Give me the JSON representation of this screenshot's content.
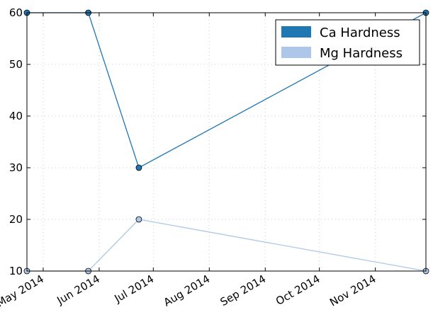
{
  "chart_data": {
    "type": "line",
    "title": "",
    "xlabel": "",
    "ylabel": "",
    "x_axis": "date",
    "xlim": [
      "2014-04-22",
      "2014-11-29"
    ],
    "ylim": [
      10,
      60
    ],
    "grid": true,
    "legend_position": "top-right",
    "x_tick_values": [
      "2014-05-01",
      "2014-06-01",
      "2014-07-01",
      "2014-08-01",
      "2014-09-01",
      "2014-10-01",
      "2014-11-01"
    ],
    "x_tick_labels": [
      "May 2014",
      "Jun 2014",
      "Jul 2014",
      "Aug 2014",
      "Sep 2014",
      "Oct 2014",
      "Nov 2014"
    ],
    "y_ticks": [
      10,
      20,
      30,
      40,
      50,
      60
    ],
    "y_tick_labels": [
      "10",
      "20",
      "30",
      "40",
      "50",
      "60"
    ],
    "series": [
      {
        "name": "Ca Hardness",
        "color": "#1f77b4",
        "x": [
          "2014-04-22",
          "2014-05-26",
          "2014-06-23",
          "2014-11-29"
        ],
        "y": [
          60,
          60,
          30,
          60
        ]
      },
      {
        "name": "Mg Hardness",
        "color": "#aec7e8",
        "x": [
          "2014-04-22",
          "2014-05-26",
          "2014-06-23",
          "2014-11-29"
        ],
        "y": [
          10,
          10,
          20,
          10
        ]
      }
    ]
  }
}
